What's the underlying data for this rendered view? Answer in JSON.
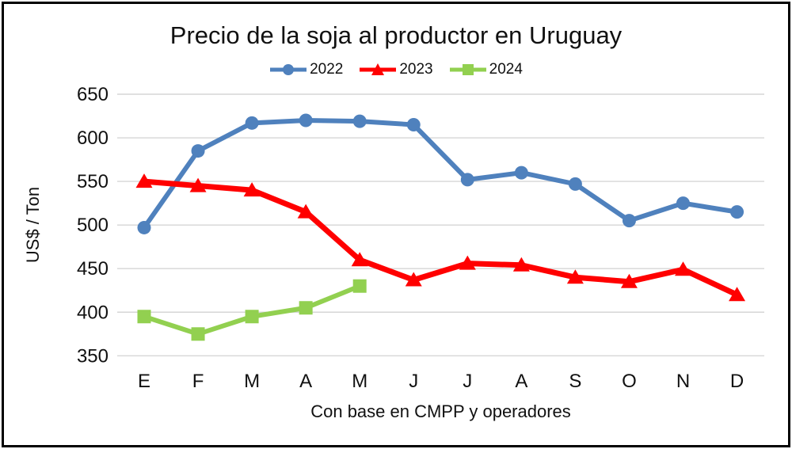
{
  "chart_data": {
    "type": "line",
    "title": "Precio de la soja al productor en Uruguay",
    "ylabel": "US$ / Ton",
    "xlabel": "Con base en CMPP y operadores",
    "categories": [
      "E",
      "F",
      "M",
      "A",
      "M",
      "J",
      "J",
      "A",
      "S",
      "O",
      "N",
      "D"
    ],
    "ylim": [
      350,
      650
    ],
    "ytick_step": 50,
    "ytick_labels": [
      "350",
      "400",
      "450",
      "500",
      "550",
      "600",
      "650"
    ],
    "grid": "horizontal",
    "legend_position": "top",
    "gridline_color": "#D6D6D6",
    "text_color": "#111111",
    "series": [
      {
        "name": "2022",
        "color": "#4F81BD",
        "marker": "circle",
        "line_width": 6,
        "values": [
          497,
          585,
          617,
          620,
          619,
          615,
          552,
          560,
          547,
          505,
          525,
          515
        ]
      },
      {
        "name": "2023",
        "color": "#FF0000",
        "marker": "triangle",
        "line_width": 7,
        "values": [
          550,
          545,
          540,
          515,
          460,
          437,
          456,
          454,
          440,
          435,
          449,
          420
        ]
      },
      {
        "name": "2024",
        "color": "#92D050",
        "marker": "square",
        "line_width": 6,
        "values": [
          395,
          375,
          395,
          405,
          430,
          null,
          null,
          null,
          null,
          null,
          null,
          null
        ]
      }
    ]
  }
}
